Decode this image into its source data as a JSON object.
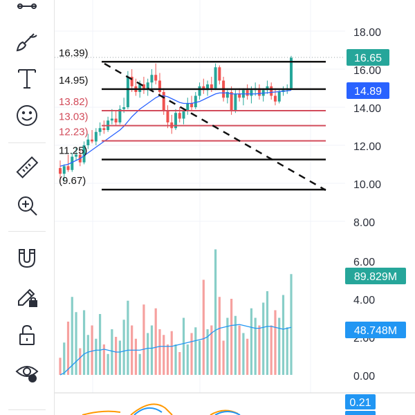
{
  "toolbar": {
    "tools": [
      {
        "name": "trend-line-tool-icon"
      },
      {
        "name": "brush-tool-icon"
      },
      {
        "name": "text-tool-icon"
      },
      {
        "name": "emoji-tool-icon"
      },
      {
        "name": "ruler-tool-icon"
      },
      {
        "name": "zoom-in-tool-icon"
      },
      {
        "name": "magnet-tool-icon"
      },
      {
        "name": "lock-drawings-icon"
      },
      {
        "name": "unlock-icon"
      },
      {
        "name": "eye-visibility-icon"
      }
    ]
  },
  "colors": {
    "up": "#26a69a",
    "down": "#ef5350",
    "ma": "#2962ff",
    "fib_red": "#d24b5a",
    "fib_black": "#111111",
    "last_price_tag": "#26a69a",
    "ma_price_tag": "#2962ff",
    "volume_tag": "#26a69a",
    "volume_ma_tag": "#2196f3",
    "osc_tag": "#2196f3"
  },
  "price_axis": {
    "ticks": [
      "18.00",
      "16.00",
      "14.00",
      "12.00",
      "10.00",
      "8.00"
    ],
    "last_price": "16.65",
    "ma_price": "14.89"
  },
  "volume_axis": {
    "ticks": [
      "6.00",
      "4.00",
      "2.00",
      "0.00"
    ],
    "last_volume": "89.829M",
    "volume_ma": "48.748M"
  },
  "oscillator": {
    "value": "0.21"
  },
  "fib_levels": [
    {
      "label": "16.39)",
      "price": 16.39,
      "color": "black"
    },
    {
      "label": "14.95)",
      "price": 14.95,
      "color": "black"
    },
    {
      "label": "13.82)",
      "price": 13.82,
      "color": "red"
    },
    {
      "label": "13.03)",
      "price": 13.03,
      "color": "red"
    },
    {
      "label": "12.23)",
      "price": 12.23,
      "color": "red"
    },
    {
      "label": "11.25)",
      "price": 11.25,
      "color": "black"
    },
    {
      "label": "(9.67)",
      "price": 9.67,
      "color": "black"
    }
  ],
  "chart_data": {
    "type": "candlestick",
    "ylim": [
      7.6,
      18.6
    ],
    "candles": [
      [
        10.8,
        11.2,
        10.0,
        10.5
      ],
      [
        10.5,
        11.0,
        10.1,
        10.9
      ],
      [
        10.9,
        11.5,
        10.6,
        10.7
      ],
      [
        10.7,
        11.6,
        10.6,
        11.4
      ],
      [
        11.4,
        11.9,
        11.2,
        11.5
      ],
      [
        11.5,
        11.8,
        10.9,
        11.1
      ],
      [
        11.1,
        12.2,
        11.0,
        12.0
      ],
      [
        12.0,
        12.6,
        11.8,
        12.3
      ],
      [
        12.3,
        12.8,
        12.1,
        12.2
      ],
      [
        12.2,
        12.9,
        12.0,
        12.7
      ],
      [
        12.7,
        13.2,
        12.5,
        12.9
      ],
      [
        12.9,
        13.3,
        12.6,
        12.8
      ],
      [
        12.8,
        13.5,
        12.7,
        13.3
      ],
      [
        13.3,
        13.9,
        13.1,
        13.4
      ],
      [
        13.4,
        13.8,
        13.0,
        13.2
      ],
      [
        13.2,
        14.1,
        13.1,
        13.9
      ],
      [
        13.9,
        14.5,
        13.7,
        14.0
      ],
      [
        14.0,
        15.9,
        13.9,
        15.6
      ],
      [
        15.6,
        16.0,
        14.8,
        15.1
      ],
      [
        15.1,
        15.5,
        14.6,
        14.8
      ],
      [
        14.8,
        15.4,
        14.5,
        15.2
      ],
      [
        15.2,
        15.6,
        14.7,
        14.9
      ],
      [
        14.9,
        15.5,
        14.6,
        15.3
      ],
      [
        15.3,
        16.0,
        15.0,
        15.7
      ],
      [
        15.7,
        16.3,
        15.2,
        15.4
      ],
      [
        15.4,
        15.8,
        14.6,
        14.8
      ],
      [
        14.8,
        15.0,
        13.6,
        13.8
      ],
      [
        13.8,
        14.1,
        12.9,
        13.2
      ],
      [
        13.2,
        13.6,
        12.6,
        12.9
      ],
      [
        12.9,
        13.9,
        12.8,
        13.7
      ],
      [
        13.7,
        14.0,
        13.2,
        13.4
      ],
      [
        13.4,
        13.9,
        13.1,
        13.8
      ],
      [
        13.8,
        14.5,
        13.6,
        14.2
      ],
      [
        14.2,
        14.6,
        13.8,
        14.0
      ],
      [
        14.0,
        14.8,
        13.9,
        14.6
      ],
      [
        14.6,
        15.3,
        14.4,
        15.1
      ],
      [
        15.1,
        15.5,
        14.7,
        14.9
      ],
      [
        14.9,
        15.4,
        14.6,
        15.2
      ],
      [
        15.2,
        15.6,
        14.8,
        15.0
      ],
      [
        15.0,
        16.3,
        14.9,
        16.1
      ],
      [
        16.1,
        16.2,
        15.2,
        15.4
      ],
      [
        15.4,
        15.6,
        14.3,
        14.5
      ],
      [
        14.5,
        15.0,
        14.2,
        14.8
      ],
      [
        14.8,
        15.1,
        13.6,
        13.8
      ],
      [
        13.8,
        14.9,
        13.7,
        14.7
      ],
      [
        14.7,
        15.0,
        14.3,
        14.5
      ],
      [
        14.5,
        15.0,
        14.1,
        14.9
      ],
      [
        14.9,
        15.2,
        14.4,
        14.6
      ],
      [
        14.6,
        15.1,
        14.2,
        14.9
      ],
      [
        14.9,
        15.3,
        14.6,
        15.0
      ],
      [
        15.0,
        15.2,
        14.4,
        14.6
      ],
      [
        14.6,
        15.0,
        14.3,
        14.9
      ],
      [
        14.9,
        15.4,
        14.7,
        15.1
      ],
      [
        15.1,
        15.3,
        14.4,
        14.6
      ],
      [
        14.6,
        15.0,
        14.1,
        14.3
      ],
      [
        14.3,
        14.9,
        14.2,
        14.8
      ],
      [
        14.8,
        15.1,
        14.6,
        14.9
      ],
      [
        14.9,
        15.2,
        14.7,
        15.0
      ],
      [
        15.0,
        16.7,
        14.9,
        16.6
      ]
    ],
    "ma": [
      10.9,
      10.95,
      11.0,
      11.1,
      11.2,
      11.3,
      11.45,
      11.6,
      11.75,
      11.9,
      12.05,
      12.2,
      12.35,
      12.5,
      12.65,
      12.8,
      13.0,
      13.25,
      13.5,
      13.7,
      13.9,
      14.05,
      14.2,
      14.35,
      14.5,
      14.6,
      14.6,
      14.55,
      14.45,
      14.35,
      14.25,
      14.2,
      14.2,
      14.2,
      14.25,
      14.3,
      14.4,
      14.5,
      14.6,
      14.7,
      14.75,
      14.75,
      14.75,
      14.7,
      14.7,
      14.7,
      14.7,
      14.7,
      14.7,
      14.7,
      14.72,
      14.74,
      14.76,
      14.78,
      14.8,
      14.82,
      14.84,
      14.86,
      14.89
    ],
    "volume": [
      0.9,
      1.7,
      2.8,
      4.1,
      3.3,
      1.4,
      3.4,
      2.1,
      2.6,
      1.9,
      3.2,
      1.6,
      1.1,
      2.4,
      2.0,
      1.8,
      2.9,
      3.9,
      2.6,
      1.9,
      1.1,
      3.7,
      2.2,
      2.6,
      3.5,
      2.4,
      2.1,
      1.6,
      2.3,
      1.6,
      1.2,
      3.0,
      1.6,
      2.2,
      2.5,
      1.8,
      5.0,
      2.4,
      2.6,
      6.6,
      4.1,
      1.8,
      3.0,
      4.0,
      3.1,
      2.6,
      2.2,
      1.9,
      3.5,
      3.0,
      2.6,
      3.8,
      4.4,
      2.6,
      3.4,
      3.0,
      4.2,
      2.5,
      5.3
    ],
    "volume_ma": [
      0.0,
      0.1,
      0.3,
      0.5,
      0.7,
      0.9,
      1.1,
      1.2,
      1.25,
      1.3,
      1.3,
      1.35,
      1.3,
      1.25,
      1.2,
      1.2,
      1.25,
      1.3,
      1.3,
      1.3,
      1.3,
      1.35,
      1.4,
      1.4,
      1.45,
      1.5,
      1.5,
      1.5,
      1.5,
      1.55,
      1.6,
      1.65,
      1.7,
      1.75,
      1.8,
      1.85,
      1.9,
      2.0,
      2.2,
      2.35,
      2.45,
      2.5,
      2.55,
      2.6,
      2.62,
      2.65,
      2.6,
      2.55,
      2.5,
      2.45,
      2.45,
      2.5,
      2.55,
      2.55,
      2.5,
      2.45,
      2.4,
      2.45,
      2.5
    ],
    "volume_ylim": [
      0,
      7.5
    ]
  }
}
